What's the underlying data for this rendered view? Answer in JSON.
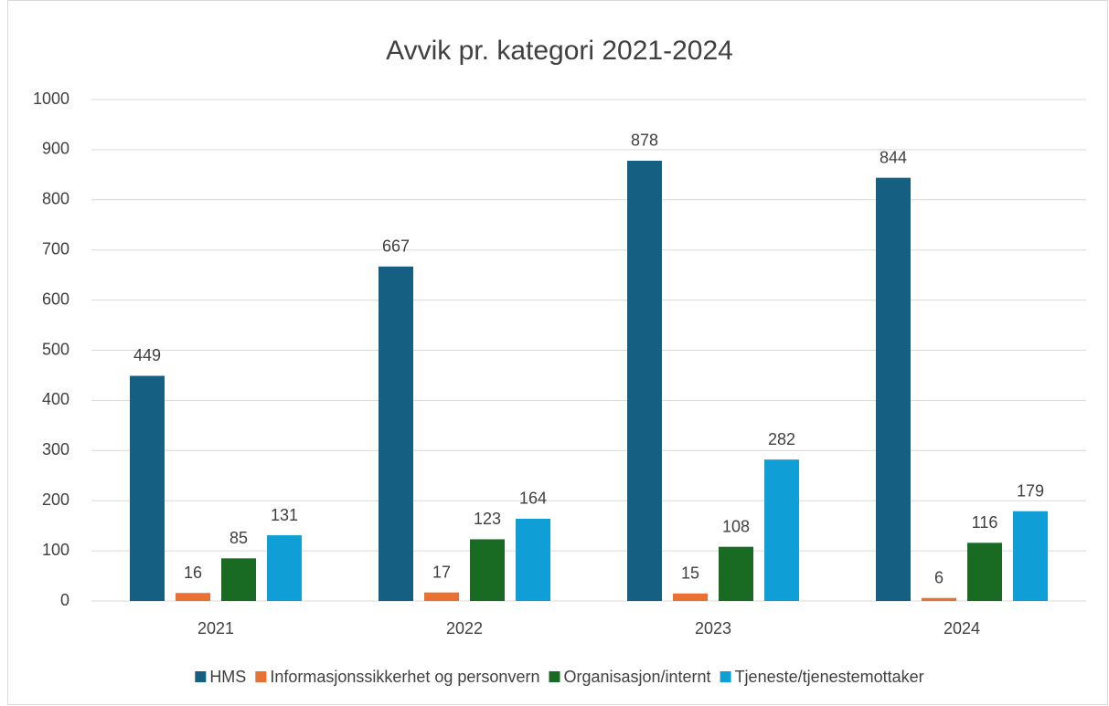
{
  "chart_data": {
    "type": "bar",
    "title": "Avvik pr. kategori 2021-2024",
    "categories": [
      "2021",
      "2022",
      "2023",
      "2024"
    ],
    "series": [
      {
        "name": "HMS",
        "color": "#156082",
        "values": [
          449,
          667,
          878,
          844
        ]
      },
      {
        "name": "Informasjonssikkerhet og personvern",
        "color": "#e97132",
        "values": [
          16,
          17,
          15,
          6
        ]
      },
      {
        "name": "Organisasjon/internt",
        "color": "#196b24",
        "values": [
          85,
          123,
          108,
          116
        ]
      },
      {
        "name": "Tjeneste/tjenestemottaker",
        "color": "#0f9ed5",
        "values": [
          131,
          164,
          282,
          179
        ]
      }
    ],
    "ylim": [
      0,
      1000
    ],
    "yticks": [
      0,
      100,
      200,
      300,
      400,
      500,
      600,
      700,
      800,
      900,
      1000
    ],
    "grid": true,
    "legend": "bottom"
  }
}
